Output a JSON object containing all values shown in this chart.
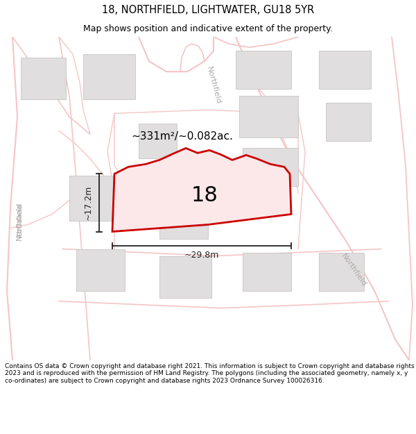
{
  "title": "18, NORTHFIELD, LIGHTWATER, GU18 5YR",
  "subtitle": "Map shows position and indicative extent of the property.",
  "footer": "Contains OS data © Crown copyright and database right 2021. This information is subject to Crown copyright and database rights 2023 and is reproduced with the permission of HM Land Registry. The polygons (including the associated geometry, namely x, y co-ordinates) are subject to Crown copyright and database rights 2023 Ordnance Survey 100026316.",
  "map_bg": "#f7f4f0",
  "road_color": "#f5c5c5",
  "road_lw": 1.2,
  "building_fc": "#e0dede",
  "building_ec": "#c8c4c4",
  "plot_fc": "#fce8e8",
  "plot_ec": "#cc0000",
  "plot_lw": 2.0,
  "plot_label": "18",
  "area_label": "~331m²/~0.082ac.",
  "width_label": "~29.8m",
  "height_label": "~17.2m",
  "dim_color": "#222222",
  "street_color": "#b0aaaa",
  "title_fontsize": 10.5,
  "subtitle_fontsize": 9.0,
  "footer_fontsize": 6.5
}
